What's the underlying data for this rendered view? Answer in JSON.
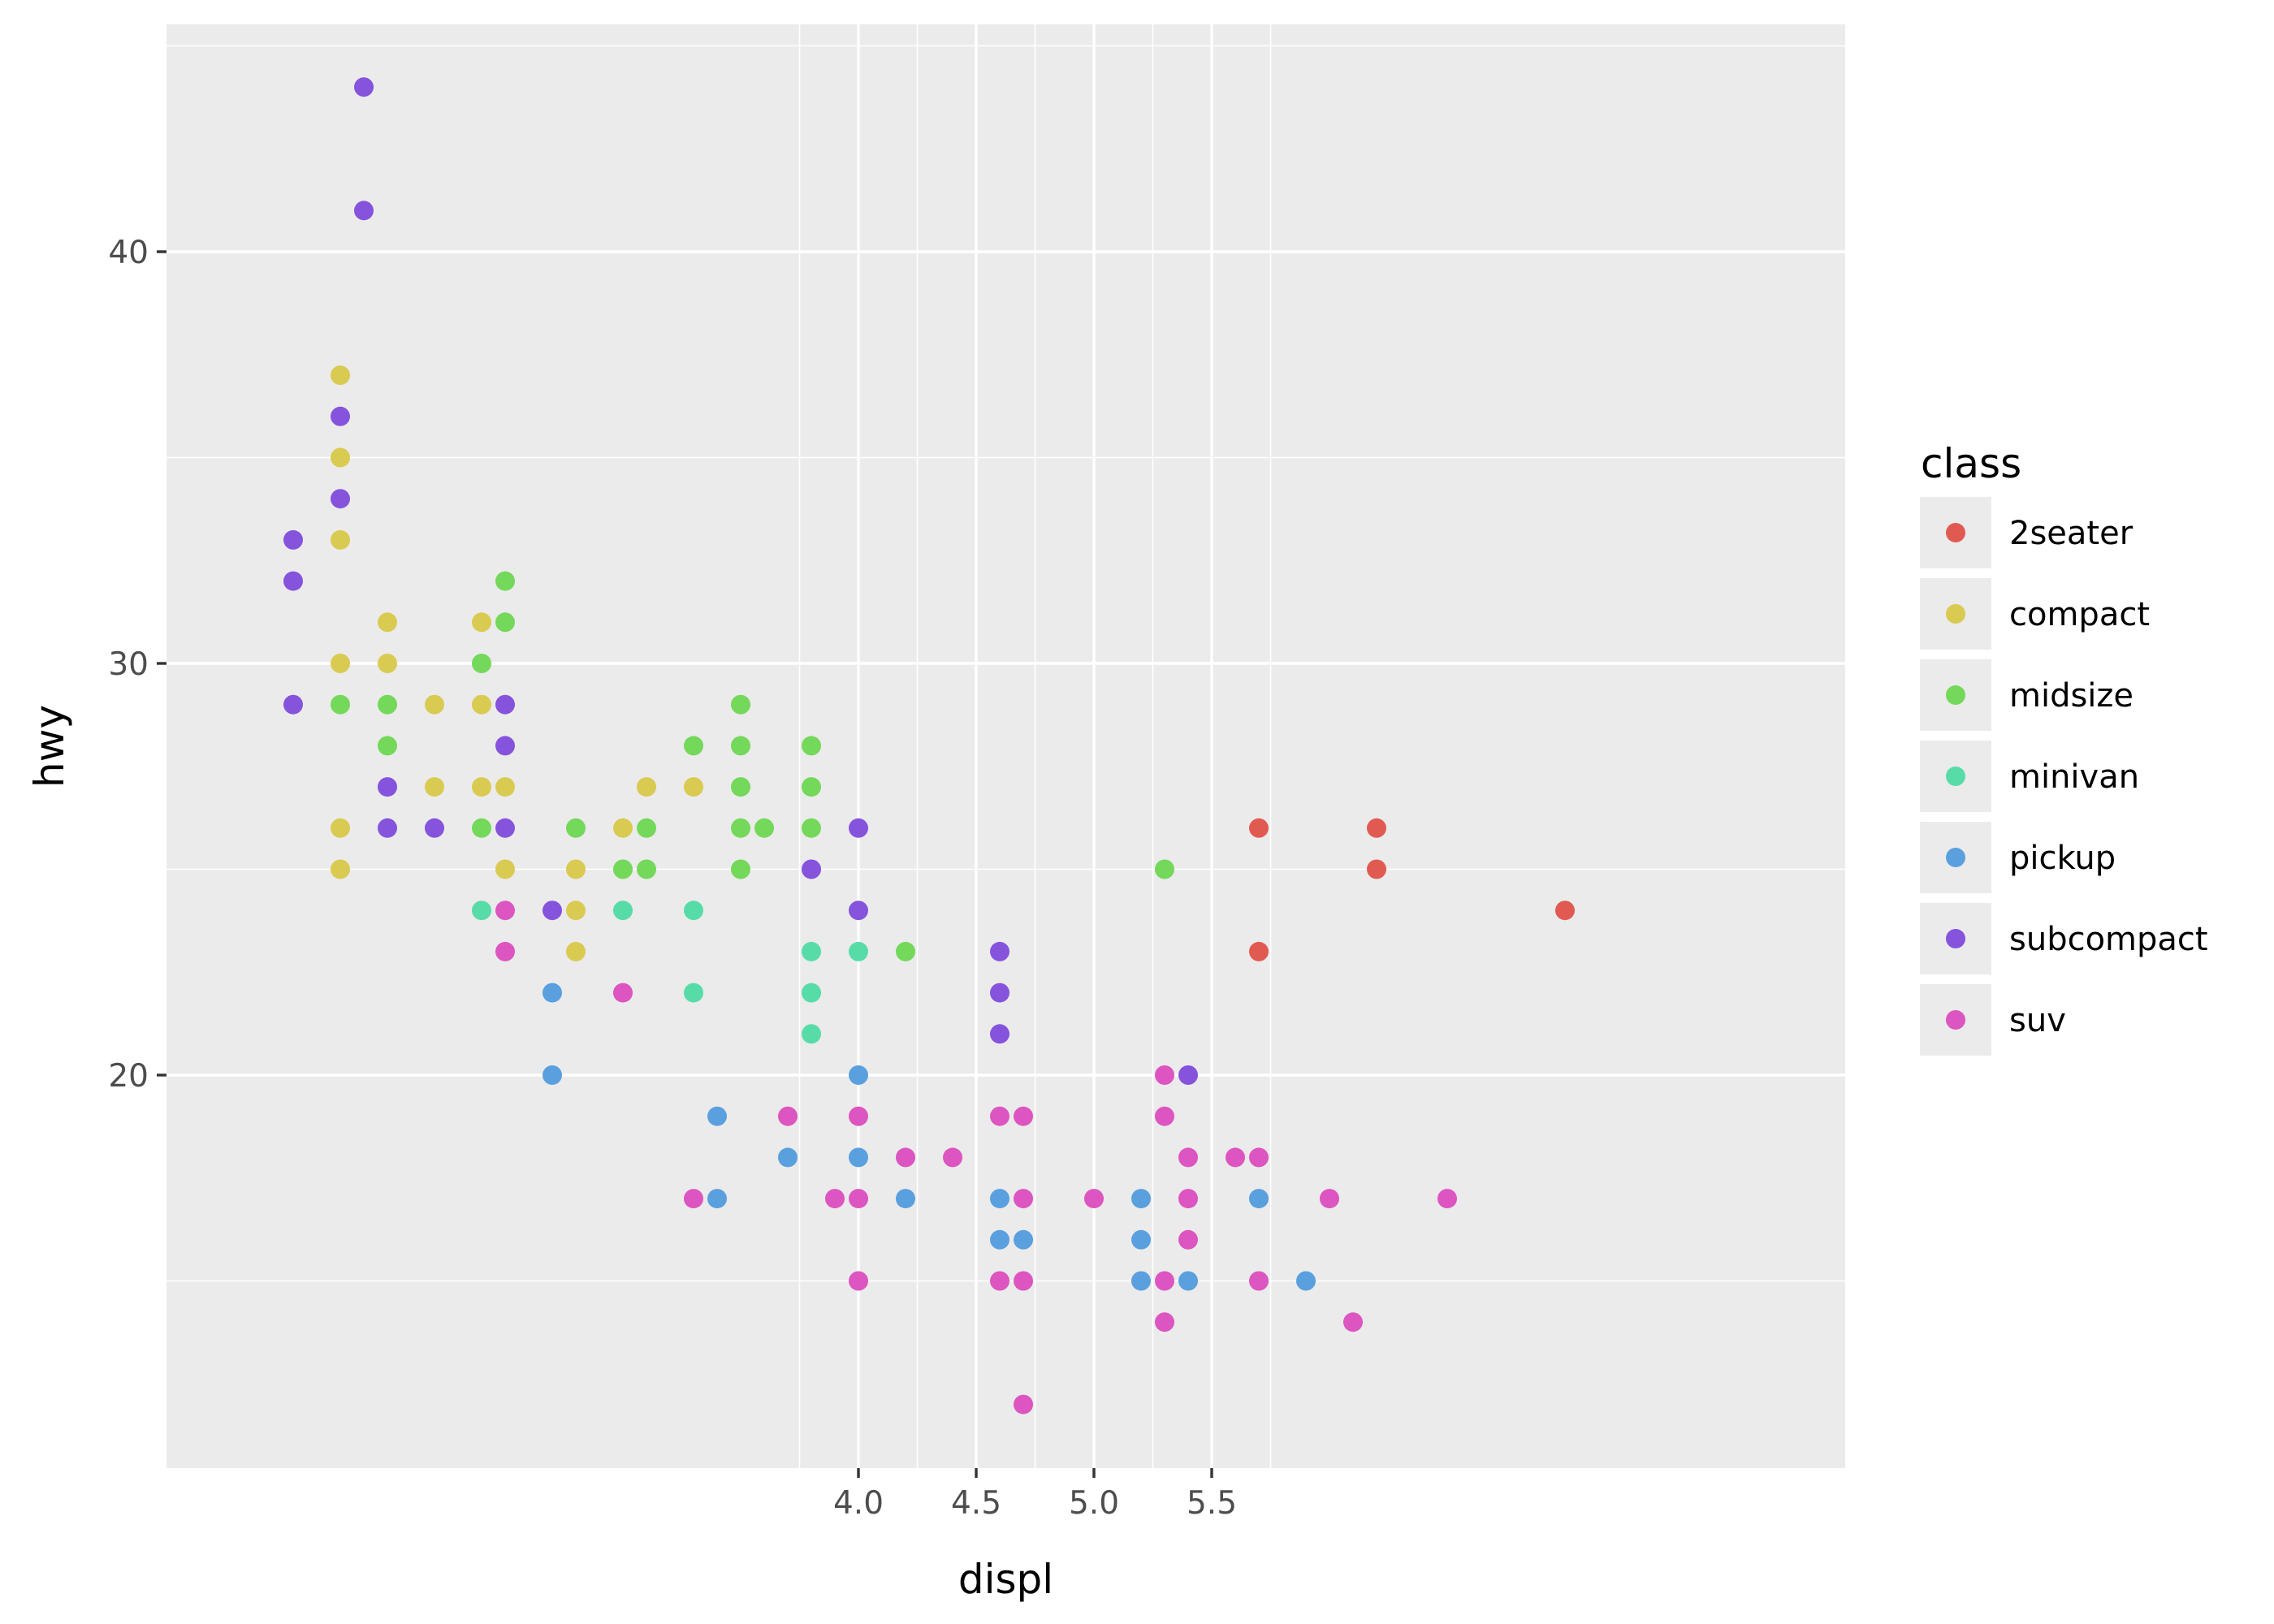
{
  "chart_data": {
    "type": "scatter",
    "xlabel": "displ",
    "ylabel": "hwy",
    "x_domain": [
      1.6,
      7.0
    ],
    "ylim": [
      10.6,
      45.6
    ],
    "x_ticks": [
      4.0,
      4.5,
      5.0,
      5.5
    ],
    "x_tick_labels": [
      "4.0",
      "4.5",
      "5.0",
      "5.5"
    ],
    "x_minor_breaks": [
      3.75,
      4.25,
      4.75,
      5.25,
      5.75
    ],
    "y_ticks": [
      20,
      30,
      40
    ],
    "y_tick_labels": [
      "20",
      "30",
      "40"
    ],
    "y_minor_breaks": [
      15,
      25,
      35,
      45
    ],
    "grid": true,
    "background": "#ebebeb",
    "legend": {
      "title": "class",
      "position": "right",
      "entries": [
        {
          "label": "2seater",
          "color": "#e15a52"
        },
        {
          "label": "compact",
          "color": "#d9ca52"
        },
        {
          "label": "midsize",
          "color": "#74d85a"
        },
        {
          "label": "minivan",
          "color": "#57dca8"
        },
        {
          "label": "pickup",
          "color": "#5aa0de"
        },
        {
          "label": "subcompact",
          "color": "#8553dc"
        },
        {
          "label": "suv",
          "color": "#dc55c0"
        }
      ]
    },
    "series": [
      {
        "name": "2seater",
        "color": "#e15a52",
        "points": [
          [
            5.7,
            26
          ],
          [
            5.7,
            23
          ],
          [
            6.2,
            26
          ],
          [
            6.2,
            25
          ],
          [
            7.0,
            24
          ]
        ]
      },
      {
        "name": "compact",
        "color": "#d9ca52",
        "points": [
          [
            1.8,
            37
          ],
          [
            1.8,
            35
          ],
          [
            1.8,
            33
          ],
          [
            1.8,
            30
          ],
          [
            1.8,
            26
          ],
          [
            1.8,
            25
          ],
          [
            2.0,
            31
          ],
          [
            2.0,
            30
          ],
          [
            2.2,
            29
          ],
          [
            2.2,
            27
          ],
          [
            2.4,
            31
          ],
          [
            2.4,
            29
          ],
          [
            2.4,
            27
          ],
          [
            2.5,
            27
          ],
          [
            2.5,
            25
          ],
          [
            2.8,
            25
          ],
          [
            2.8,
            24
          ],
          [
            2.8,
            23
          ],
          [
            3.0,
            26
          ],
          [
            3.1,
            27
          ],
          [
            3.3,
            27
          ]
        ]
      },
      {
        "name": "midsize",
        "color": "#74d85a",
        "points": [
          [
            1.8,
            29
          ],
          [
            2.0,
            29
          ],
          [
            2.0,
            28
          ],
          [
            2.4,
            30
          ],
          [
            2.4,
            26
          ],
          [
            2.5,
            32
          ],
          [
            2.5,
            31
          ],
          [
            2.8,
            26
          ],
          [
            3.0,
            25
          ],
          [
            3.1,
            26
          ],
          [
            3.1,
            25
          ],
          [
            3.3,
            28
          ],
          [
            3.5,
            29
          ],
          [
            3.5,
            28
          ],
          [
            3.5,
            27
          ],
          [
            3.5,
            26
          ],
          [
            3.5,
            25
          ],
          [
            3.6,
            26
          ],
          [
            3.8,
            28
          ],
          [
            3.8,
            27
          ],
          [
            3.8,
            26
          ],
          [
            4.2,
            23
          ],
          [
            5.3,
            25
          ]
        ]
      },
      {
        "name": "minivan",
        "color": "#57dca8",
        "points": [
          [
            2.4,
            24
          ],
          [
            3.0,
            24
          ],
          [
            3.3,
            24
          ],
          [
            3.3,
            22
          ],
          [
            3.8,
            23
          ],
          [
            3.8,
            22
          ],
          [
            3.8,
            21
          ],
          [
            4.0,
            23
          ]
        ]
      },
      {
        "name": "pickup",
        "color": "#5aa0de",
        "points": [
          [
            2.7,
            22
          ],
          [
            2.7,
            20
          ],
          [
            3.4,
            19
          ],
          [
            3.4,
            17
          ],
          [
            3.7,
            18
          ],
          [
            4.0,
            20
          ],
          [
            4.0,
            18
          ],
          [
            4.2,
            17
          ],
          [
            4.6,
            17
          ],
          [
            4.6,
            16
          ],
          [
            4.7,
            16
          ],
          [
            5.2,
            17
          ],
          [
            5.2,
            16
          ],
          [
            5.2,
            15
          ],
          [
            5.4,
            15
          ],
          [
            5.7,
            17
          ],
          [
            5.9,
            15
          ]
        ]
      },
      {
        "name": "subcompact",
        "color": "#8553dc",
        "points": [
          [
            1.9,
            44
          ],
          [
            1.9,
            41
          ],
          [
            1.8,
            36
          ],
          [
            1.8,
            34
          ],
          [
            1.6,
            33
          ],
          [
            1.6,
            32
          ],
          [
            1.6,
            29
          ],
          [
            2.0,
            27
          ],
          [
            2.0,
            26
          ],
          [
            2.2,
            26
          ],
          [
            2.5,
            29
          ],
          [
            2.5,
            28
          ],
          [
            2.5,
            26
          ],
          [
            2.7,
            24
          ],
          [
            3.8,
            25
          ],
          [
            4.0,
            26
          ],
          [
            4.0,
            24
          ],
          [
            4.6,
            23
          ],
          [
            4.6,
            22
          ],
          [
            4.6,
            21
          ],
          [
            5.4,
            20
          ]
        ]
      },
      {
        "name": "suv",
        "color": "#dc55c0",
        "points": [
          [
            2.5,
            24
          ],
          [
            2.5,
            23
          ],
          [
            3.0,
            22
          ],
          [
            3.3,
            17
          ],
          [
            3.7,
            19
          ],
          [
            3.9,
            17
          ],
          [
            4.0,
            19
          ],
          [
            4.0,
            17
          ],
          [
            4.0,
            15
          ],
          [
            4.2,
            18
          ],
          [
            4.4,
            18
          ],
          [
            4.6,
            19
          ],
          [
            4.6,
            15
          ],
          [
            4.7,
            19
          ],
          [
            4.7,
            17
          ],
          [
            4.7,
            15
          ],
          [
            4.7,
            12
          ],
          [
            5.0,
            17
          ],
          [
            5.3,
            20
          ],
          [
            5.3,
            19
          ],
          [
            5.3,
            15
          ],
          [
            5.3,
            14
          ],
          [
            5.4,
            18
          ],
          [
            5.4,
            17
          ],
          [
            5.4,
            16
          ],
          [
            5.6,
            18
          ],
          [
            5.7,
            18
          ],
          [
            5.7,
            15
          ],
          [
            6.0,
            17
          ],
          [
            6.1,
            14
          ],
          [
            6.5,
            17
          ]
        ]
      }
    ]
  }
}
